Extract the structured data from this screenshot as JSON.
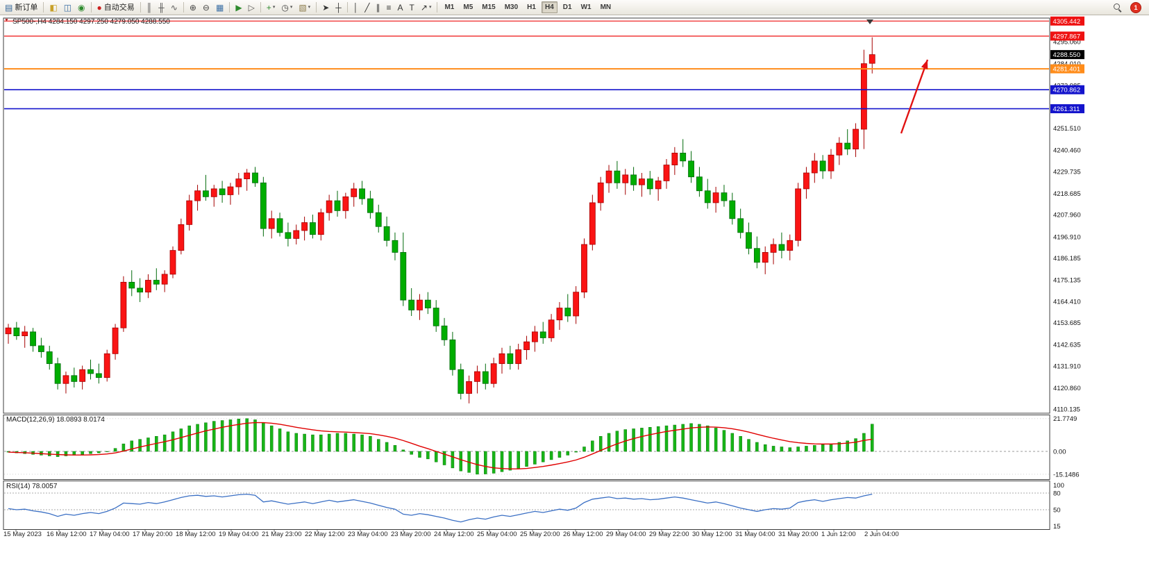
{
  "toolbar": {
    "notification_count": "1",
    "timeframes": [
      "M1",
      "M5",
      "M15",
      "M30",
      "H1",
      "H4",
      "D1",
      "W1",
      "MN"
    ],
    "active_timeframe": "H4",
    "icons": {
      "one_click": "▼",
      "new_order": "▤",
      "charts": "◧",
      "profiles": "◫",
      "market_watch": "◉",
      "auto_trading": "●",
      "bar_chart": "║",
      "candle_chart": "╫",
      "line_chart": "∿",
      "zoom_in": "⊕",
      "zoom_out": "⊖",
      "tile_windows": "▦",
      "auto_scroll": "▶",
      "chart_shift": "▷",
      "indicators": "+",
      "periods": "◷",
      "templates": "▧",
      "cursor": "➤",
      "crosshair": "┼",
      "vertical_line": "│",
      "trendline": "╱",
      "channel": "∥",
      "fibonacci": "≡",
      "text_tool": "A",
      "label_tool": "T",
      "arrow_tool": "↗",
      "dropdown": "▾"
    },
    "items": [
      {
        "name": "new-order",
        "icon": "new_order",
        "label": "新订单",
        "color": "#33669/9"
      },
      {
        "sep": true
      },
      {
        "name": "charts",
        "icon": "charts",
        "color": "#c8a028"
      },
      {
        "name": "profiles",
        "icon": "profiles",
        "color": "#3a6ea5"
      },
      {
        "name": "market-watch",
        "icon": "market_watch",
        "color": "#2e8b2e"
      },
      {
        "sep": true
      },
      {
        "name": "auto-trading",
        "icon": "auto_trading",
        "label": "自动交易",
        "color": "#cc2020"
      },
      {
        "sep": true
      },
      {
        "name": "bar-chart",
        "icon": "bar_chart",
        "color": "#555555"
      },
      {
        "name": "candle-chart",
        "icon": "candle_chart",
        "color": "#555555"
      },
      {
        "name": "line-chart",
        "icon": "line_chart",
        "color": "#555555"
      },
      {
        "sep": true
      },
      {
        "name": "zoom-in",
        "icon": "zoom_in",
        "color": "#444444"
      },
      {
        "name": "zoom-out",
        "icon": "zoom_out",
        "color": "#444444"
      },
      {
        "name": "tile-windows",
        "icon": "tile_windows",
        "color": "#3a6ea5"
      },
      {
        "sep": true
      },
      {
        "name": "auto-scroll",
        "icon": "auto_scroll",
        "color": "#2e8b2e"
      },
      {
        "name": "chart-shift",
        "icon": "chart_shift",
        "color": "#555555"
      },
      {
        "sep": true
      },
      {
        "name": "indicators",
        "icon": "indicators",
        "color": "#2e8b2e",
        "dropdown": true
      },
      {
        "name": "periods",
        "icon": "periods",
        "color": "#444444",
        "dropdown": true
      },
      {
        "name": "templates",
        "icon": "templates",
        "color": "#8a7a4a",
        "dropdown": true
      },
      {
        "sep": true
      },
      {
        "name": "cursor",
        "icon": "cursor",
        "color": "#333333"
      },
      {
        "name": "crosshair",
        "icon": "crosshair",
        "color": "#333333"
      },
      {
        "sep": true
      },
      {
        "name": "vertical-line",
        "icon": "vertical_line",
        "color": "#333333"
      },
      {
        "name": "trendline",
        "icon": "trendline",
        "color": "#333333"
      },
      {
        "name": "channel",
        "icon": "channel",
        "color": "#333333"
      },
      {
        "name": "fibonacci",
        "icon": "fibonacci",
        "color": "#333333"
      },
      {
        "name": "text",
        "icon": "text_tool",
        "color": "#333333"
      },
      {
        "name": "label",
        "icon": "label_tool",
        "color": "#333333"
      },
      {
        "name": "arrow-tool",
        "icon": "arrow_tool",
        "color": "#333333",
        "dropdown": true
      },
      {
        "sep": true
      }
    ]
  },
  "chart": {
    "symbol_info": "SP500-,H4  4284.150 4297.250 4279.050 4288.550",
    "current_price": "4288.550",
    "price_axis_labels": [
      "4295.060",
      "4284.010",
      "4272.985",
      "4251.510",
      "4240.460",
      "4229.735",
      "4218.685",
      "4207.960",
      "4196.910",
      "4186.185",
      "4175.135",
      "4164.410",
      "4153.685",
      "4142.635",
      "4131.910",
      "4120.860",
      "4110.135"
    ],
    "hlines": [
      {
        "price": 4305.442,
        "color": "#ee1111",
        "width": 1.2
      },
      {
        "price": 4297.867,
        "color": "#ee1111",
        "width": 1.2
      },
      {
        "price": 4288.55,
        "color": "#000000",
        "width": 0
      },
      {
        "price": 4281.401,
        "color": "#ff8c1a",
        "width": 2
      },
      {
        "price": 4270.862,
        "color": "#1414cc",
        "width": 1.6
      },
      {
        "price": 4261.311,
        "color": "#1414cc",
        "width": 1.6
      }
    ],
    "time_axis": [
      "15 May 2023",
      "16 May 12:00",
      "17 May 04:00",
      "17 May 20:00",
      "18 May 12:00",
      "19 May 04:00",
      "21 May 23:00",
      "22 May 12:00",
      "23 May 04:00",
      "23 May 20:00",
      "24 May 12:00",
      "25 May 04:00",
      "25 May 20:00",
      "26 May 12:00",
      "29 May 04:00",
      "29 May 22:00",
      "30 May 12:00",
      "31 May 04:00",
      "31 May 20:00",
      "1 Jun 12:00",
      "2 Jun 04:00"
    ]
  },
  "indicators": {
    "macd_label": "MACD(12,26,9) 18.0893 8.0174",
    "macd_axis": [
      "21.7749",
      "0.00",
      "-15.1486"
    ],
    "rsi_label": "RSI(14) 78.0057",
    "rsi_axis": [
      "100",
      "80",
      "50",
      "15"
    ]
  },
  "chart_data": [
    {
      "type": "candlestick",
      "title": "SP500- H4",
      "convention": "red = bullish, green = bearish",
      "up_color": "#fa1414",
      "down_color": "#00ad00",
      "ylim": [
        4106,
        4308
      ],
      "ohlc": [
        [
          4148,
          4153,
          4143,
          4151
        ],
        [
          4151,
          4154,
          4145,
          4147
        ],
        [
          4147,
          4152,
          4141,
          4149
        ],
        [
          4149,
          4151,
          4139,
          4142
        ],
        [
          4142,
          4146,
          4136,
          4139
        ],
        [
          4139,
          4142,
          4130,
          4133
        ],
        [
          4133,
          4136,
          4120,
          4123
        ],
        [
          4123,
          4129,
          4118,
          4127
        ],
        [
          4127,
          4131,
          4121,
          4124
        ],
        [
          4124,
          4132,
          4120,
          4130
        ],
        [
          4130,
          4135,
          4125,
          4128
        ],
        [
          4128,
          4133,
          4123,
          4126
        ],
        [
          4126,
          4140,
          4124,
          4138
        ],
        [
          4138,
          4153,
          4135,
          4151
        ],
        [
          4151,
          4177,
          4149,
          4174
        ],
        [
          4174,
          4180,
          4167,
          4171
        ],
        [
          4171,
          4176,
          4164,
          4169
        ],
        [
          4169,
          4178,
          4166,
          4175
        ],
        [
          4175,
          4181,
          4170,
          4173
        ],
        [
          4173,
          4180,
          4169,
          4178
        ],
        [
          4178,
          4192,
          4176,
          4190
        ],
        [
          4190,
          4206,
          4188,
          4203
        ],
        [
          4203,
          4218,
          4200,
          4215
        ],
        [
          4215,
          4223,
          4210,
          4220
        ],
        [
          4220,
          4228,
          4215,
          4217
        ],
        [
          4217,
          4223,
          4212,
          4221
        ],
        [
          4221,
          4225,
          4214,
          4218
        ],
        [
          4218,
          4224,
          4213,
          4222
        ],
        [
          4222,
          4229,
          4218,
          4226
        ],
        [
          4226,
          4231,
          4220,
          4229
        ],
        [
          4229,
          4232,
          4222,
          4224
        ],
        [
          4224,
          4227,
          4197,
          4201
        ],
        [
          4201,
          4210,
          4196,
          4206
        ],
        [
          4206,
          4209,
          4197,
          4199
        ],
        [
          4199,
          4204,
          4192,
          4196
        ],
        [
          4196,
          4203,
          4193,
          4200
        ],
        [
          4200,
          4207,
          4195,
          4204
        ],
        [
          4204,
          4208,
          4196,
          4198
        ],
        [
          4198,
          4211,
          4195,
          4209
        ],
        [
          4209,
          4218,
          4205,
          4215
        ],
        [
          4215,
          4220,
          4207,
          4210
        ],
        [
          4210,
          4219,
          4206,
          4217
        ],
        [
          4217,
          4224,
          4212,
          4221
        ],
        [
          4221,
          4225,
          4213,
          4216
        ],
        [
          4216,
          4220,
          4206,
          4209
        ],
        [
          4209,
          4213,
          4199,
          4202
        ],
        [
          4202,
          4207,
          4192,
          4195
        ],
        [
          4195,
          4199,
          4185,
          4189
        ],
        [
          4189,
          4199,
          4162,
          4165
        ],
        [
          4165,
          4171,
          4157,
          4160
        ],
        [
          4160,
          4168,
          4155,
          4165
        ],
        [
          4165,
          4169,
          4158,
          4161
        ],
        [
          4161,
          4165,
          4149,
          4152
        ],
        [
          4152,
          4156,
          4142,
          4145
        ],
        [
          4145,
          4149,
          4127,
          4130
        ],
        [
          4130,
          4133,
          4115,
          4118
        ],
        [
          4118,
          4127,
          4113,
          4124
        ],
        [
          4124,
          4132,
          4118,
          4129
        ],
        [
          4129,
          4133,
          4120,
          4123
        ],
        [
          4123,
          4136,
          4121,
          4133
        ],
        [
          4133,
          4141,
          4128,
          4138
        ],
        [
          4138,
          4142,
          4130,
          4133
        ],
        [
          4133,
          4143,
          4130,
          4140
        ],
        [
          4140,
          4147,
          4135,
          4144
        ],
        [
          4144,
          4152,
          4139,
          4149
        ],
        [
          4149,
          4154,
          4143,
          4146
        ],
        [
          4146,
          4158,
          4144,
          4155
        ],
        [
          4155,
          4164,
          4150,
          4161
        ],
        [
          4161,
          4168,
          4154,
          4157
        ],
        [
          4157,
          4172,
          4153,
          4169
        ],
        [
          4169,
          4196,
          4166,
          4193
        ],
        [
          4193,
          4218,
          4190,
          4214
        ],
        [
          4214,
          4227,
          4210,
          4224
        ],
        [
          4224,
          4233,
          4219,
          4230
        ],
        [
          4230,
          4235,
          4221,
          4224
        ],
        [
          4224,
          4231,
          4218,
          4228
        ],
        [
          4228,
          4232,
          4220,
          4223
        ],
        [
          4223,
          4229,
          4217,
          4226
        ],
        [
          4226,
          4230,
          4218,
          4221
        ],
        [
          4221,
          4227,
          4215,
          4225
        ],
        [
          4225,
          4236,
          4221,
          4233
        ],
        [
          4233,
          4242,
          4228,
          4239
        ],
        [
          4239,
          4246,
          4232,
          4235
        ],
        [
          4235,
          4240,
          4224,
          4227
        ],
        [
          4227,
          4232,
          4217,
          4220
        ],
        [
          4220,
          4226,
          4211,
          4214
        ],
        [
          4214,
          4222,
          4209,
          4219
        ],
        [
          4219,
          4223,
          4212,
          4215
        ],
        [
          4215,
          4219,
          4203,
          4206
        ],
        [
          4206,
          4211,
          4196,
          4199
        ],
        [
          4199,
          4204,
          4188,
          4191
        ],
        [
          4191,
          4197,
          4181,
          4184
        ],
        [
          4184,
          4192,
          4178,
          4189
        ],
        [
          4189,
          4196,
          4183,
          4193
        ],
        [
          4193,
          4199,
          4186,
          4190
        ],
        [
          4190,
          4198,
          4185,
          4195
        ],
        [
          4195,
          4224,
          4192,
          4221
        ],
        [
          4221,
          4232,
          4216,
          4229
        ],
        [
          4229,
          4239,
          4224,
          4235
        ],
        [
          4235,
          4238,
          4226,
          4230
        ],
        [
          4230,
          4241,
          4226,
          4238
        ],
        [
          4238,
          4247,
          4233,
          4244
        ],
        [
          4244,
          4251,
          4238,
          4241
        ],
        [
          4241,
          4254,
          4237,
          4251
        ],
        [
          4251,
          4291,
          4241,
          4284
        ],
        [
          4284.15,
          4297.25,
          4279.05,
          4288.55
        ]
      ]
    },
    {
      "type": "bar",
      "name": "MACD(12,26,9)",
      "current_values": [
        18.0893,
        8.0174
      ],
      "ylim": [
        -16,
        22
      ],
      "histogram_color": "#18b518",
      "signal_color": "#e00000",
      "histogram": [
        -0.5,
        -1,
        -1.5,
        -2,
        -2.5,
        -3,
        -3.5,
        -3,
        -2.5,
        -2,
        -1.5,
        -1,
        0,
        2,
        5,
        7,
        8,
        9,
        10,
        11,
        13,
        15,
        17,
        18,
        19,
        20,
        20.5,
        21,
        21.5,
        21.77,
        21,
        19,
        17,
        15,
        13,
        12,
        11.5,
        11,
        11,
        11.5,
        12,
        12,
        11.5,
        11,
        10,
        8,
        6,
        4,
        1,
        -2,
        -4,
        -5,
        -7,
        -9,
        -11,
        -13,
        -14,
        -15.15,
        -15,
        -14.5,
        -13.5,
        -12.5,
        -11.5,
        -10,
        -8.5,
        -7,
        -5.5,
        -4,
        -2.5,
        -0.5,
        3,
        7,
        10,
        12,
        13.5,
        14.5,
        15,
        15.5,
        16,
        16.5,
        17,
        17.5,
        18,
        18.5,
        18,
        17,
        15.5,
        14,
        12,
        10,
        8,
        6,
        4.5,
        3.5,
        3,
        2.5,
        3,
        3.5,
        4,
        4.5,
        5,
        6,
        7,
        8.5,
        12,
        18.09
      ],
      "signal_line": [
        -0.5,
        -0.7,
        -0.9,
        -1.2,
        -1.5,
        -1.8,
        -2.1,
        -2.3,
        -2.4,
        -2.4,
        -2.3,
        -2.1,
        -1.7,
        -1.0,
        0.2,
        1.6,
        2.9,
        4.1,
        5.3,
        6.4,
        7.7,
        9.2,
        10.7,
        12.2,
        13.6,
        14.8,
        16.0,
        17.0,
        17.9,
        18.7,
        19.1,
        19.1,
        18.7,
        18.0,
        17.0,
        16.0,
        15.1,
        14.3,
        13.6,
        13.2,
        13.0,
        12.8,
        12.5,
        12.2,
        11.8,
        11.0,
        10.0,
        8.8,
        7.2,
        5.4,
        3.5,
        1.8,
        0.0,
        -1.8,
        -3.6,
        -5.5,
        -7.2,
        -8.8,
        -10.0,
        -10.9,
        -11.4,
        -11.6,
        -11.6,
        -11.3,
        -10.7,
        -10.0,
        -9.1,
        -8.1,
        -7.0,
        -5.7,
        -3.9,
        -1.7,
        0.6,
        2.9,
        5.0,
        6.9,
        8.5,
        9.9,
        11.1,
        12.2,
        13.2,
        14.0,
        14.8,
        15.6,
        16.0,
        16.2,
        16.1,
        15.7,
        15.0,
        14.0,
        12.8,
        11.4,
        10.0,
        8.7,
        7.6,
        6.5,
        5.8,
        5.3,
        5.0,
        4.9,
        4.9,
        5.1,
        5.5,
        6.1,
        7.3,
        8.02
      ]
    },
    {
      "type": "line",
      "name": "RSI(14)",
      "current_value": 78.0057,
      "ylim": [
        15,
        100
      ],
      "levels": [
        80,
        50
      ],
      "line_color": "#3a6fc4",
      "values": [
        52,
        50,
        51,
        48,
        46,
        43,
        38,
        42,
        40,
        43,
        45,
        43,
        47,
        53,
        62,
        61,
        60,
        63,
        61,
        64,
        68,
        72,
        75,
        76,
        74,
        75,
        73,
        75,
        77,
        78,
        76,
        64,
        66,
        63,
        60,
        62,
        64,
        61,
        64,
        67,
        64,
        66,
        68,
        65,
        62,
        58,
        54,
        51,
        42,
        40,
        43,
        41,
        38,
        35,
        31,
        28,
        32,
        35,
        33,
        37,
        40,
        38,
        41,
        44,
        47,
        45,
        48,
        51,
        49,
        53,
        63,
        69,
        71,
        73,
        70,
        71,
        69,
        70,
        68,
        69,
        71,
        73,
        71,
        68,
        65,
        62,
        64,
        61,
        57,
        53,
        50,
        47,
        50,
        52,
        51,
        53,
        63,
        66,
        68,
        65,
        68,
        70,
        72,
        71,
        75,
        78.01
      ]
    }
  ]
}
